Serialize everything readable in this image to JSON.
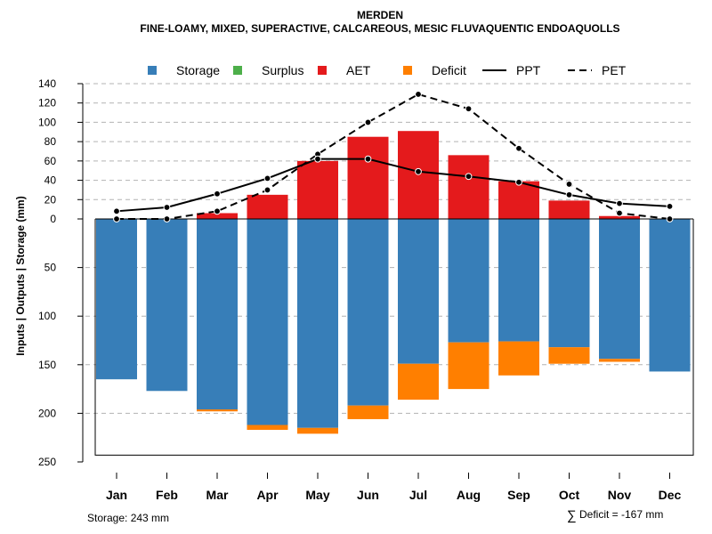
{
  "chart_data": {
    "type": "bar",
    "title": "MERDEN",
    "subtitle": "FINE-LOAMY, MIXED, SUPERACTIVE, CALCAREOUS, MESIC FLUVAQUENTIC ENDOAQUOLLS",
    "ylabel": "Inputs | Outputs | Storage     (mm)",
    "categories": [
      "Jan",
      "Feb",
      "Mar",
      "Apr",
      "May",
      "Jun",
      "Jul",
      "Aug",
      "Sep",
      "Oct",
      "Nov",
      "Dec"
    ],
    "upper_ticks": [
      140,
      120,
      100,
      80,
      60,
      40,
      20,
      0
    ],
    "lower_ticks": [
      50,
      100,
      150,
      200,
      250
    ],
    "upper_ylim": [
      0,
      140
    ],
    "lower_ylim": [
      0,
      250
    ],
    "storage_capacity": 243,
    "series": [
      {
        "name": "Storage",
        "color": "#377EB8",
        "values": [
          165,
          177,
          196,
          212,
          215,
          192,
          149,
          127,
          126,
          132,
          144,
          157
        ]
      },
      {
        "name": "Surplus",
        "color": "#4DAF4A",
        "values": [
          0,
          0,
          0,
          0,
          0,
          0,
          0,
          0,
          0,
          0,
          0,
          0
        ]
      },
      {
        "name": "AET",
        "color": "#E41A1C",
        "values": [
          0,
          0,
          6,
          25,
          60,
          85,
          91,
          66,
          39,
          19,
          3,
          0
        ]
      },
      {
        "name": "Deficit",
        "color": "#FF7F00",
        "values": [
          0,
          0,
          2,
          5,
          6,
          14,
          37,
          48,
          35,
          17,
          3,
          0
        ]
      },
      {
        "name": "PPT",
        "color": "#000000",
        "style": "solid",
        "values": [
          8,
          12,
          26,
          42,
          62,
          62,
          49,
          44,
          38,
          25,
          16,
          13
        ]
      },
      {
        "name": "PET",
        "color": "#000000",
        "style": "dashed",
        "values": [
          0,
          0,
          8,
          30,
          67,
          100,
          129,
          114,
          73,
          36,
          6,
          0
        ]
      }
    ]
  },
  "legend": [
    "Storage",
    "Surplus",
    "AET",
    "Deficit",
    "PPT",
    "PET"
  ],
  "footer": {
    "storage_text": "Storage: 243 mm",
    "deficit_symbol": "∑",
    "deficit_text": "Deficit = -167 mm"
  }
}
